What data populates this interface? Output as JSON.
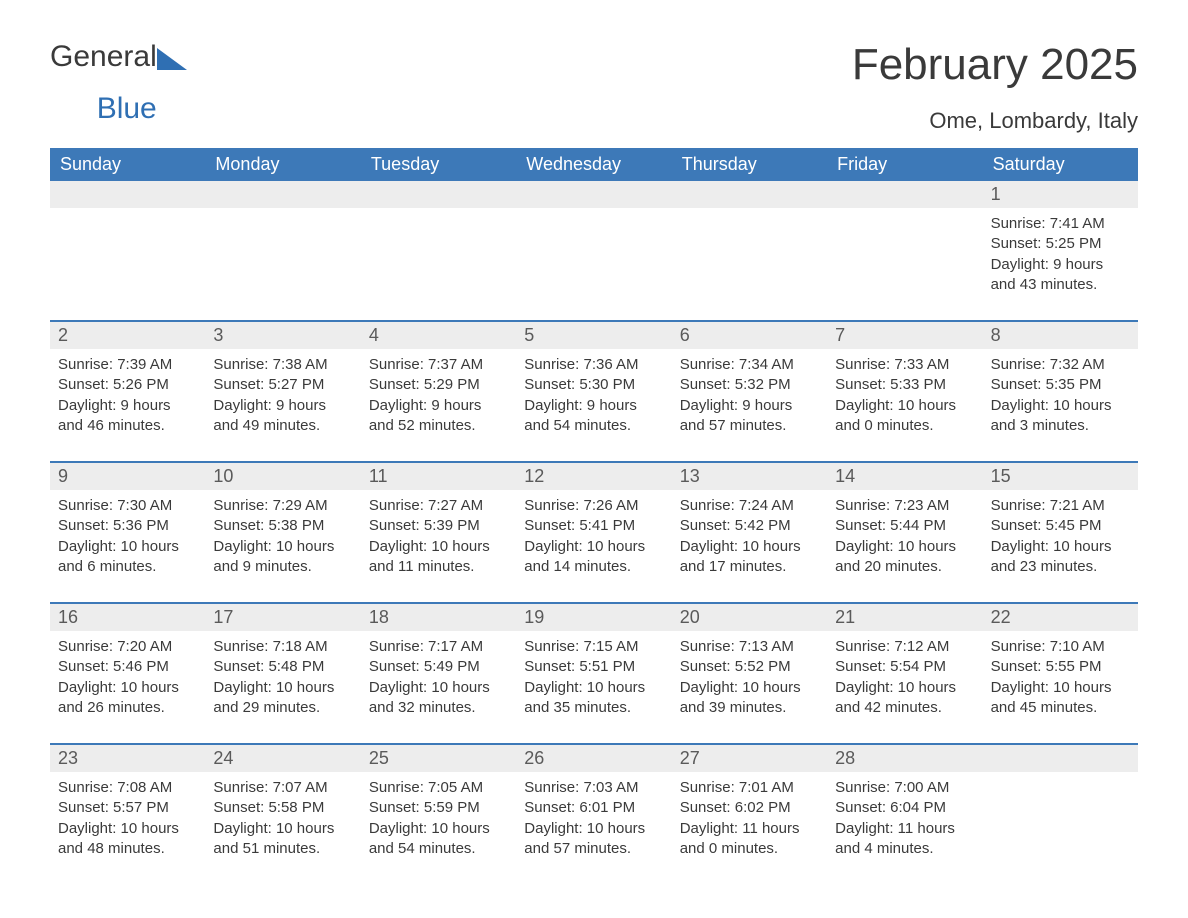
{
  "logo": {
    "line1": "General",
    "line2": "Blue"
  },
  "title": "February 2025",
  "subtitle": "Ome, Lombardy, Italy",
  "colors": {
    "header_bg": "#3d79b8",
    "header_text": "#ffffff",
    "daynum_bg": "#ededed",
    "body_text": "#3a3a3a",
    "logo_blue": "#2f6fb3",
    "week_border": "#3d79b8",
    "page_bg": "#ffffff"
  },
  "columns": [
    "Sunday",
    "Monday",
    "Tuesday",
    "Wednesday",
    "Thursday",
    "Friday",
    "Saturday"
  ],
  "weeks": [
    [
      null,
      null,
      null,
      null,
      null,
      null,
      {
        "day": "1",
        "sunrise": "Sunrise: 7:41 AM",
        "sunset": "Sunset: 5:25 PM",
        "daylight1": "Daylight: 9 hours",
        "daylight2": "and 43 minutes."
      }
    ],
    [
      {
        "day": "2",
        "sunrise": "Sunrise: 7:39 AM",
        "sunset": "Sunset: 5:26 PM",
        "daylight1": "Daylight: 9 hours",
        "daylight2": "and 46 minutes."
      },
      {
        "day": "3",
        "sunrise": "Sunrise: 7:38 AM",
        "sunset": "Sunset: 5:27 PM",
        "daylight1": "Daylight: 9 hours",
        "daylight2": "and 49 minutes."
      },
      {
        "day": "4",
        "sunrise": "Sunrise: 7:37 AM",
        "sunset": "Sunset: 5:29 PM",
        "daylight1": "Daylight: 9 hours",
        "daylight2": "and 52 minutes."
      },
      {
        "day": "5",
        "sunrise": "Sunrise: 7:36 AM",
        "sunset": "Sunset: 5:30 PM",
        "daylight1": "Daylight: 9 hours",
        "daylight2": "and 54 minutes."
      },
      {
        "day": "6",
        "sunrise": "Sunrise: 7:34 AM",
        "sunset": "Sunset: 5:32 PM",
        "daylight1": "Daylight: 9 hours",
        "daylight2": "and 57 minutes."
      },
      {
        "day": "7",
        "sunrise": "Sunrise: 7:33 AM",
        "sunset": "Sunset: 5:33 PM",
        "daylight1": "Daylight: 10 hours",
        "daylight2": "and 0 minutes."
      },
      {
        "day": "8",
        "sunrise": "Sunrise: 7:32 AM",
        "sunset": "Sunset: 5:35 PM",
        "daylight1": "Daylight: 10 hours",
        "daylight2": "and 3 minutes."
      }
    ],
    [
      {
        "day": "9",
        "sunrise": "Sunrise: 7:30 AM",
        "sunset": "Sunset: 5:36 PM",
        "daylight1": "Daylight: 10 hours",
        "daylight2": "and 6 minutes."
      },
      {
        "day": "10",
        "sunrise": "Sunrise: 7:29 AM",
        "sunset": "Sunset: 5:38 PM",
        "daylight1": "Daylight: 10 hours",
        "daylight2": "and 9 minutes."
      },
      {
        "day": "11",
        "sunrise": "Sunrise: 7:27 AM",
        "sunset": "Sunset: 5:39 PM",
        "daylight1": "Daylight: 10 hours",
        "daylight2": "and 11 minutes."
      },
      {
        "day": "12",
        "sunrise": "Sunrise: 7:26 AM",
        "sunset": "Sunset: 5:41 PM",
        "daylight1": "Daylight: 10 hours",
        "daylight2": "and 14 minutes."
      },
      {
        "day": "13",
        "sunrise": "Sunrise: 7:24 AM",
        "sunset": "Sunset: 5:42 PM",
        "daylight1": "Daylight: 10 hours",
        "daylight2": "and 17 minutes."
      },
      {
        "day": "14",
        "sunrise": "Sunrise: 7:23 AM",
        "sunset": "Sunset: 5:44 PM",
        "daylight1": "Daylight: 10 hours",
        "daylight2": "and 20 minutes."
      },
      {
        "day": "15",
        "sunrise": "Sunrise: 7:21 AM",
        "sunset": "Sunset: 5:45 PM",
        "daylight1": "Daylight: 10 hours",
        "daylight2": "and 23 minutes."
      }
    ],
    [
      {
        "day": "16",
        "sunrise": "Sunrise: 7:20 AM",
        "sunset": "Sunset: 5:46 PM",
        "daylight1": "Daylight: 10 hours",
        "daylight2": "and 26 minutes."
      },
      {
        "day": "17",
        "sunrise": "Sunrise: 7:18 AM",
        "sunset": "Sunset: 5:48 PM",
        "daylight1": "Daylight: 10 hours",
        "daylight2": "and 29 minutes."
      },
      {
        "day": "18",
        "sunrise": "Sunrise: 7:17 AM",
        "sunset": "Sunset: 5:49 PM",
        "daylight1": "Daylight: 10 hours",
        "daylight2": "and 32 minutes."
      },
      {
        "day": "19",
        "sunrise": "Sunrise: 7:15 AM",
        "sunset": "Sunset: 5:51 PM",
        "daylight1": "Daylight: 10 hours",
        "daylight2": "and 35 minutes."
      },
      {
        "day": "20",
        "sunrise": "Sunrise: 7:13 AM",
        "sunset": "Sunset: 5:52 PM",
        "daylight1": "Daylight: 10 hours",
        "daylight2": "and 39 minutes."
      },
      {
        "day": "21",
        "sunrise": "Sunrise: 7:12 AM",
        "sunset": "Sunset: 5:54 PM",
        "daylight1": "Daylight: 10 hours",
        "daylight2": "and 42 minutes."
      },
      {
        "day": "22",
        "sunrise": "Sunrise: 7:10 AM",
        "sunset": "Sunset: 5:55 PM",
        "daylight1": "Daylight: 10 hours",
        "daylight2": "and 45 minutes."
      }
    ],
    [
      {
        "day": "23",
        "sunrise": "Sunrise: 7:08 AM",
        "sunset": "Sunset: 5:57 PM",
        "daylight1": "Daylight: 10 hours",
        "daylight2": "and 48 minutes."
      },
      {
        "day": "24",
        "sunrise": "Sunrise: 7:07 AM",
        "sunset": "Sunset: 5:58 PM",
        "daylight1": "Daylight: 10 hours",
        "daylight2": "and 51 minutes."
      },
      {
        "day": "25",
        "sunrise": "Sunrise: 7:05 AM",
        "sunset": "Sunset: 5:59 PM",
        "daylight1": "Daylight: 10 hours",
        "daylight2": "and 54 minutes."
      },
      {
        "day": "26",
        "sunrise": "Sunrise: 7:03 AM",
        "sunset": "Sunset: 6:01 PM",
        "daylight1": "Daylight: 10 hours",
        "daylight2": "and 57 minutes."
      },
      {
        "day": "27",
        "sunrise": "Sunrise: 7:01 AM",
        "sunset": "Sunset: 6:02 PM",
        "daylight1": "Daylight: 11 hours",
        "daylight2": "and 0 minutes."
      },
      {
        "day": "28",
        "sunrise": "Sunrise: 7:00 AM",
        "sunset": "Sunset: 6:04 PM",
        "daylight1": "Daylight: 11 hours",
        "daylight2": "and 4 minutes."
      },
      null
    ]
  ]
}
